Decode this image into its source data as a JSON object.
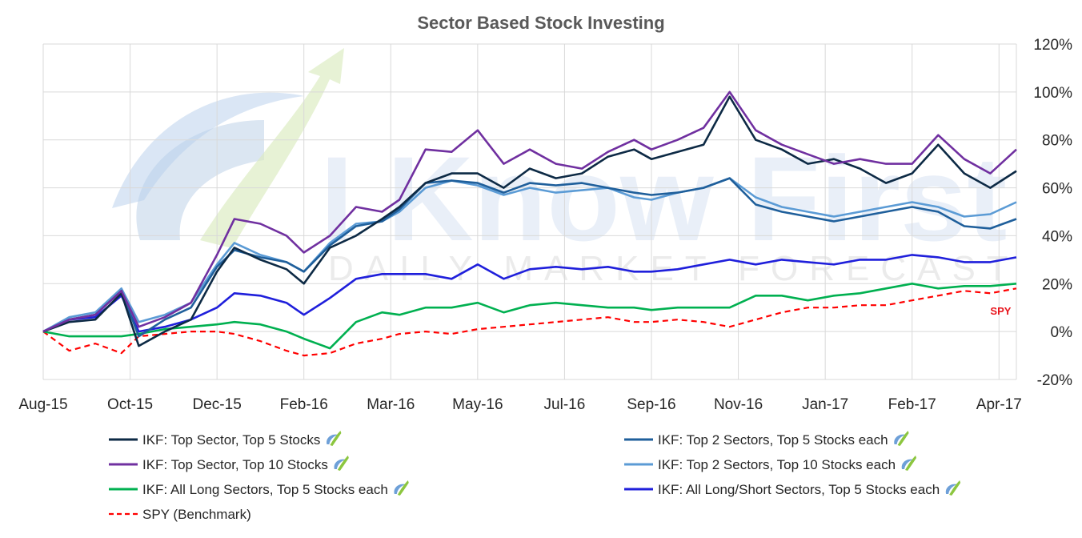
{
  "chart_data": {
    "type": "line",
    "title": "Sector Based Stock Investing",
    "xlabel": "",
    "ylabel": "",
    "grid": true,
    "y_axis_side": "right",
    "legend_placement": "bottom",
    "ylim": [
      -0.2,
      1.2
    ],
    "yticks": [
      -0.2,
      0,
      0.2,
      0.4,
      0.6,
      0.8,
      1.0,
      1.2
    ],
    "ytick_labels": [
      "-20%",
      "0%",
      "20%",
      "40%",
      "60%",
      "80%",
      "100%",
      "120%"
    ],
    "xticks": [
      "Aug-15",
      "Oct-15",
      "Dec-15",
      "Feb-16",
      "Mar-16",
      "May-16",
      "Jul-16",
      "Sep-16",
      "Nov-16",
      "Jan-17",
      "Feb-17",
      "Apr-17"
    ],
    "x_range": [
      0,
      11.2
    ],
    "watermark": {
      "brand": "I Know First",
      "tagline": "DAILY MARKET FORECAST"
    },
    "annotations": [
      {
        "text": "SPY",
        "x": 10.9,
        "y": 0.07,
        "color": "#e8131b"
      }
    ],
    "series": [
      {
        "name": "IKF: Top Sector, Top 5 Stocks",
        "color": "#0d2a45",
        "dash": false,
        "legend_icon": "ikf-logo-icon",
        "x": [
          0,
          0.3,
          0.6,
          0.9,
          1.1,
          1.4,
          1.7,
          2.0,
          2.2,
          2.5,
          2.8,
          3.0,
          3.3,
          3.6,
          3.9,
          4.1,
          4.4,
          4.7,
          5.0,
          5.3,
          5.6,
          5.9,
          6.2,
          6.5,
          6.8,
          7.0,
          7.3,
          7.6,
          7.9,
          8.2,
          8.5,
          8.8,
          9.1,
          9.4,
          9.7,
          10.0,
          10.3,
          10.6,
          10.9,
          11.2
        ],
        "y": [
          0.0,
          0.04,
          0.05,
          0.16,
          -0.06,
          0.0,
          0.05,
          0.25,
          0.35,
          0.3,
          0.26,
          0.2,
          0.35,
          0.4,
          0.47,
          0.52,
          0.62,
          0.66,
          0.66,
          0.6,
          0.68,
          0.64,
          0.66,
          0.73,
          0.76,
          0.72,
          0.75,
          0.78,
          0.98,
          0.8,
          0.76,
          0.7,
          0.72,
          0.68,
          0.62,
          0.66,
          0.78,
          0.66,
          0.6,
          0.67
        ]
      },
      {
        "name": "IKF: Top 2 Sectors, Top 5 Stocks each",
        "color": "#1f5f9b",
        "dash": false,
        "legend_icon": "ikf-logo-icon",
        "x": [
          0,
          0.3,
          0.6,
          0.9,
          1.1,
          1.4,
          1.7,
          2.0,
          2.2,
          2.5,
          2.8,
          3.0,
          3.3,
          3.6,
          3.9,
          4.1,
          4.4,
          4.7,
          5.0,
          5.3,
          5.6,
          5.9,
          6.2,
          6.5,
          6.8,
          7.0,
          7.3,
          7.6,
          7.9,
          8.2,
          8.5,
          8.8,
          9.1,
          9.4,
          9.7,
          10.0,
          10.3,
          10.6,
          10.9,
          11.2
        ],
        "y": [
          0.0,
          0.05,
          0.07,
          0.17,
          -0.02,
          0.05,
          0.1,
          0.27,
          0.34,
          0.31,
          0.29,
          0.25,
          0.36,
          0.44,
          0.46,
          0.51,
          0.62,
          0.63,
          0.62,
          0.58,
          0.62,
          0.61,
          0.62,
          0.6,
          0.58,
          0.57,
          0.58,
          0.6,
          0.64,
          0.53,
          0.5,
          0.48,
          0.46,
          0.48,
          0.5,
          0.52,
          0.5,
          0.44,
          0.43,
          0.47
        ]
      },
      {
        "name": "IKF: Top Sector, Top 10 Stocks",
        "color": "#7030a0",
        "dash": false,
        "legend_icon": "ikf-logo-icon",
        "x": [
          0,
          0.3,
          0.6,
          0.9,
          1.1,
          1.4,
          1.7,
          2.0,
          2.2,
          2.5,
          2.8,
          3.0,
          3.3,
          3.6,
          3.9,
          4.1,
          4.4,
          4.7,
          5.0,
          5.3,
          5.6,
          5.9,
          6.2,
          6.5,
          6.8,
          7.0,
          7.3,
          7.6,
          7.9,
          8.2,
          8.5,
          8.8,
          9.1,
          9.4,
          9.7,
          10.0,
          10.3,
          10.6,
          10.9,
          11.2
        ],
        "y": [
          0.0,
          0.05,
          0.07,
          0.17,
          0.02,
          0.06,
          0.12,
          0.32,
          0.47,
          0.45,
          0.4,
          0.33,
          0.4,
          0.52,
          0.5,
          0.55,
          0.76,
          0.75,
          0.84,
          0.7,
          0.76,
          0.7,
          0.68,
          0.75,
          0.8,
          0.76,
          0.8,
          0.85,
          1.0,
          0.84,
          0.78,
          0.74,
          0.7,
          0.72,
          0.7,
          0.7,
          0.82,
          0.72,
          0.66,
          0.76
        ]
      },
      {
        "name": "IKF: Top 2 Sectors, Top 10 Stocks each",
        "color": "#5b9bd5",
        "dash": false,
        "legend_icon": "ikf-logo-icon",
        "x": [
          0,
          0.3,
          0.6,
          0.9,
          1.1,
          1.4,
          1.7,
          2.0,
          2.2,
          2.5,
          2.8,
          3.0,
          3.3,
          3.6,
          3.9,
          4.1,
          4.4,
          4.7,
          5.0,
          5.3,
          5.6,
          5.9,
          6.2,
          6.5,
          6.8,
          7.0,
          7.3,
          7.6,
          7.9,
          8.2,
          8.5,
          8.8,
          9.1,
          9.4,
          9.7,
          10.0,
          10.3,
          10.6,
          10.9,
          11.2
        ],
        "y": [
          0.0,
          0.06,
          0.08,
          0.18,
          0.04,
          0.07,
          0.12,
          0.28,
          0.37,
          0.32,
          0.29,
          0.25,
          0.37,
          0.45,
          0.46,
          0.5,
          0.6,
          0.63,
          0.61,
          0.57,
          0.6,
          0.58,
          0.59,
          0.6,
          0.56,
          0.55,
          0.58,
          0.6,
          0.64,
          0.56,
          0.52,
          0.5,
          0.48,
          0.5,
          0.52,
          0.54,
          0.52,
          0.48,
          0.49,
          0.54
        ]
      },
      {
        "name": "IKF: All Long Sectors, Top 5 Stocks each",
        "color": "#00b050",
        "dash": false,
        "legend_icon": "ikf-logo-icon",
        "x": [
          0,
          0.3,
          0.6,
          0.9,
          1.1,
          1.4,
          1.7,
          2.0,
          2.2,
          2.5,
          2.8,
          3.0,
          3.3,
          3.6,
          3.9,
          4.1,
          4.4,
          4.7,
          5.0,
          5.3,
          5.6,
          5.9,
          6.2,
          6.5,
          6.8,
          7.0,
          7.3,
          7.6,
          7.9,
          8.2,
          8.5,
          8.8,
          9.1,
          9.4,
          9.7,
          10.0,
          10.3,
          10.6,
          10.9,
          11.2
        ],
        "y": [
          0.0,
          -0.02,
          -0.02,
          -0.02,
          -0.01,
          0.01,
          0.02,
          0.03,
          0.04,
          0.03,
          0.0,
          -0.03,
          -0.07,
          0.04,
          0.08,
          0.07,
          0.1,
          0.1,
          0.12,
          0.08,
          0.11,
          0.12,
          0.11,
          0.1,
          0.1,
          0.09,
          0.1,
          0.1,
          0.1,
          0.15,
          0.15,
          0.13,
          0.15,
          0.16,
          0.18,
          0.2,
          0.18,
          0.19,
          0.19,
          0.2
        ]
      },
      {
        "name": "IKF: All Long/Short Sectors, Top 5 Stocks each",
        "color": "#1f1fdb",
        "dash": false,
        "legend_icon": "ikf-logo-icon",
        "x": [
          0,
          0.3,
          0.6,
          0.9,
          1.1,
          1.4,
          1.7,
          2.0,
          2.2,
          2.5,
          2.8,
          3.0,
          3.3,
          3.6,
          3.9,
          4.1,
          4.4,
          4.7,
          5.0,
          5.3,
          5.6,
          5.9,
          6.2,
          6.5,
          6.8,
          7.0,
          7.3,
          7.6,
          7.9,
          8.2,
          8.5,
          8.8,
          9.1,
          9.4,
          9.7,
          10.0,
          10.3,
          10.6,
          10.9,
          11.2
        ],
        "y": [
          0.0,
          0.05,
          0.06,
          0.15,
          0.0,
          0.02,
          0.05,
          0.1,
          0.16,
          0.15,
          0.12,
          0.07,
          0.14,
          0.22,
          0.24,
          0.24,
          0.24,
          0.22,
          0.28,
          0.22,
          0.26,
          0.27,
          0.26,
          0.27,
          0.25,
          0.25,
          0.26,
          0.28,
          0.3,
          0.28,
          0.3,
          0.29,
          0.28,
          0.3,
          0.3,
          0.32,
          0.31,
          0.29,
          0.29,
          0.31
        ]
      },
      {
        "name": "SPY (Benchmark)",
        "color": "#ff0000",
        "dash": true,
        "legend_icon": "",
        "x": [
          0,
          0.3,
          0.6,
          0.9,
          1.1,
          1.4,
          1.7,
          2.0,
          2.2,
          2.5,
          2.8,
          3.0,
          3.3,
          3.6,
          3.9,
          4.1,
          4.4,
          4.7,
          5.0,
          5.3,
          5.6,
          5.9,
          6.2,
          6.5,
          6.8,
          7.0,
          7.3,
          7.6,
          7.9,
          8.2,
          8.5,
          8.8,
          9.1,
          9.4,
          9.7,
          10.0,
          10.3,
          10.6,
          10.9,
          11.2
        ],
        "y": [
          0.0,
          -0.08,
          -0.05,
          -0.09,
          -0.02,
          -0.01,
          0.0,
          0.0,
          -0.01,
          -0.04,
          -0.08,
          -0.1,
          -0.09,
          -0.05,
          -0.03,
          -0.01,
          0.0,
          -0.01,
          0.01,
          0.02,
          0.03,
          0.04,
          0.05,
          0.06,
          0.04,
          0.04,
          0.05,
          0.04,
          0.02,
          0.05,
          0.08,
          0.1,
          0.1,
          0.11,
          0.11,
          0.13,
          0.15,
          0.17,
          0.16,
          0.18
        ]
      }
    ]
  }
}
